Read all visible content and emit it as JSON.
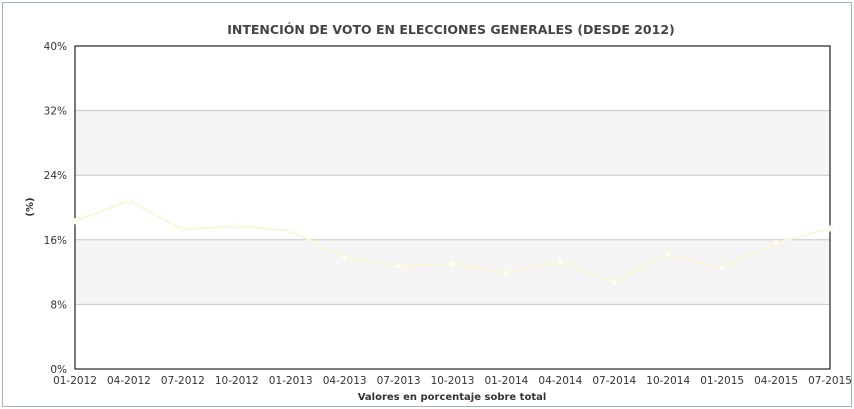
{
  "chart_data": {
    "type": "line",
    "title": "INTENCIÓN DE VOTO EN ELECCIONES GENERALES (DESDE 2012)",
    "xlabel": "Valores en porcentaje sobre total",
    "ylabel": "(%)",
    "ylim": [
      0,
      40
    ],
    "y_ticks": [
      "0%",
      "8%",
      "16%",
      "24%",
      "32%",
      "40%"
    ],
    "categories": [
      "01-2012",
      "04-2012",
      "07-2012",
      "10-2012",
      "01-2013",
      "04-2013",
      "07-2013",
      "10-2013",
      "01-2014",
      "04-2014",
      "07-2014",
      "10-2014",
      "01-2015",
      "04-2015",
      "07-2015"
    ],
    "series": [
      {
        "color": "#fbf7dc",
        "x": [
          "01-2012",
          "04-2012",
          "07-2012",
          "10-2012",
          "01-2013",
          "04-2013",
          "07-2013",
          "10-2013",
          "01-2014",
          "04-2014",
          "07-2014",
          "10-2014",
          "01-2015",
          "04-2015",
          "07-2015"
        ],
        "values": [
          18.3,
          20.8,
          17.3,
          17.7,
          17.1,
          13.8,
          12.7,
          13.0,
          11.9,
          13.3,
          10.7,
          14.2,
          12.5,
          15.6,
          17.4
        ]
      }
    ],
    "grid": true,
    "legend": "none"
  }
}
